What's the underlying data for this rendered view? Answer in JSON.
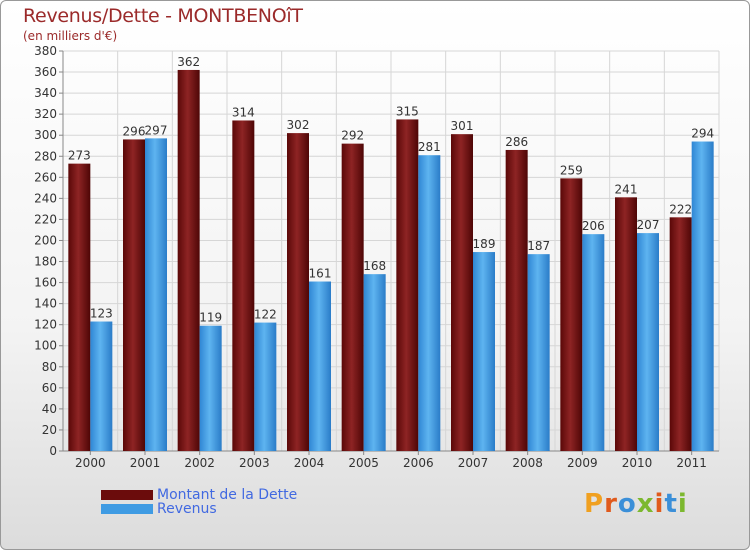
{
  "title": "Revenus/Dette - MONTBENOîT",
  "subtitle": "(en milliers d'€)",
  "logo": "Proxiti",
  "chart_data": {
    "type": "bar",
    "categories": [
      "2000",
      "2001",
      "2002",
      "2003",
      "2004",
      "2005",
      "2006",
      "2007",
      "2008",
      "2009",
      "2010",
      "2011"
    ],
    "series": [
      {
        "name": "Montant de la Dette",
        "color": "#7a1010",
        "values": [
          273,
          296,
          362,
          314,
          302,
          292,
          315,
          301,
          286,
          259,
          241,
          222
        ]
      },
      {
        "name": "Revenus",
        "color": "#3f9be3",
        "values": [
          123,
          297,
          119,
          122,
          161,
          168,
          281,
          189,
          187,
          206,
          207,
          294
        ]
      }
    ],
    "ylim": [
      0,
      380
    ],
    "yticks": [
      0,
      20,
      40,
      60,
      80,
      100,
      120,
      140,
      160,
      180,
      200,
      220,
      240,
      260,
      280,
      300,
      320,
      340,
      360,
      380
    ],
    "grid": true,
    "legend_position": "bottom-left"
  }
}
